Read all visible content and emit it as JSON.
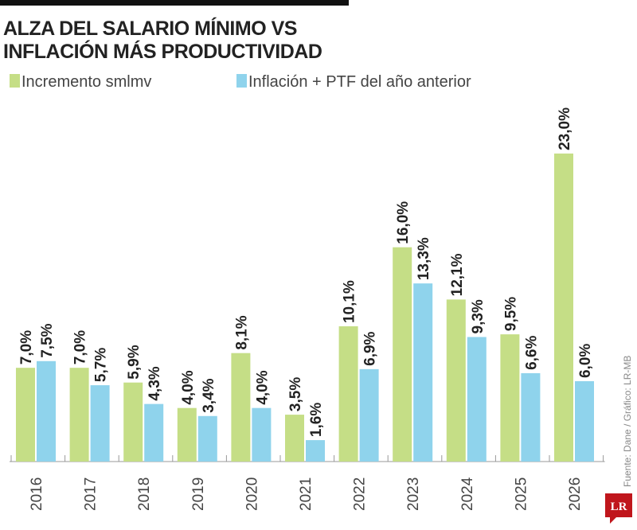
{
  "chart_data": {
    "type": "bar",
    "title": "ALZA DEL SALARIO MÍNIMO VS INFLACIÓN MÁS PRODUCTIVIDAD",
    "title_lines": [
      "ALZA DEL SALARIO MÍNIMO VS",
      "INFLACIÓN MÁS PRODUCTIVIDAD"
    ],
    "categories": [
      "2016",
      "2017",
      "2018",
      "2019",
      "2020",
      "2021",
      "2022",
      "2023",
      "2024",
      "2025",
      "2026"
    ],
    "series": [
      {
        "name": "Incremento smlmv",
        "color": "#c5de86",
        "values": [
          7.0,
          7.0,
          5.9,
          4.0,
          8.1,
          3.5,
          10.1,
          16.0,
          12.1,
          9.5,
          23.0
        ],
        "labels": [
          "7,0%",
          "7,0%",
          "5,9%",
          "4,0%",
          "8,1%",
          "3,5%",
          "10,1%",
          "16,0%",
          "12,1%",
          "9,5%",
          "23,0%"
        ]
      },
      {
        "name": "Inflación + PTF del año anterior",
        "color": "#8fd3ec",
        "values": [
          7.5,
          5.7,
          4.3,
          3.4,
          4.0,
          1.6,
          6.9,
          13.3,
          9.3,
          6.6,
          6.0
        ],
        "labels": [
          "7,5%",
          "5,7%",
          "4,3%",
          "3,4%",
          "4,0%",
          "1,6%",
          "6,9%",
          "13,3%",
          "9,3%",
          "6,6%",
          "6,0%"
        ]
      }
    ],
    "xlabel": "",
    "ylabel": "",
    "ylim": [
      0,
      23.5
    ],
    "grid": false,
    "legend": "top-left",
    "source": "Fuente: Dane / Gráfico: LR-MB",
    "logo": "LR"
  }
}
